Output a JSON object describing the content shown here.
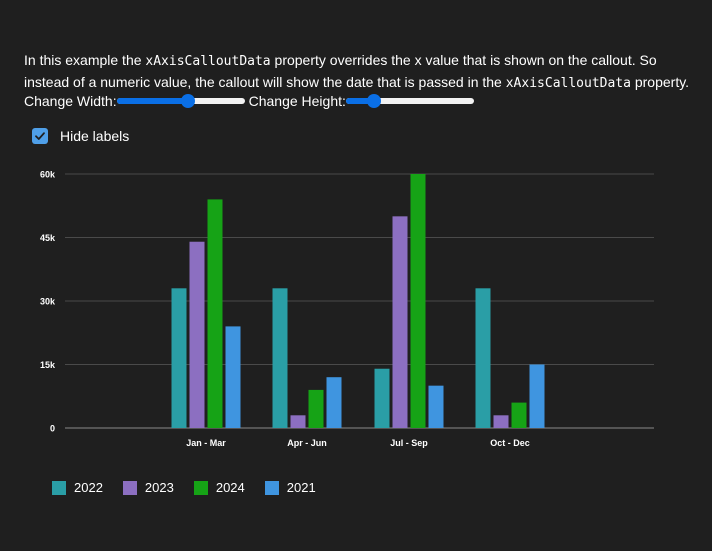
{
  "description": {
    "part1": "In this example the ",
    "code1": "xAxisCalloutData",
    "part2": " property overrides the x value that is shown on the callout. So instead of a numeric value, the callout will show the date that is passed in the ",
    "code2": "xAxisCalloutData",
    "part3": " property."
  },
  "controls": {
    "width_label": "Change Width:",
    "width_value": 0.56,
    "height_label": "Change Height:",
    "height_value": 0.22
  },
  "checkbox": {
    "label": "Hide labels",
    "checked": true,
    "icon": "checkmark-icon"
  },
  "colors": {
    "background": "#1f1f1f",
    "accent": "#0a6fe6"
  },
  "chart_data": {
    "type": "bar",
    "categories": [
      "Jan - Mar",
      "Apr - Jun",
      "Jul - Sep",
      "Oct - Dec"
    ],
    "yticks": [
      "0",
      "15k",
      "30k",
      "45k",
      "60k"
    ],
    "ylim": [
      0,
      60000
    ],
    "grid": true,
    "legend_position": "bottom-left",
    "series": [
      {
        "name": "2022",
        "color": "#2a9ea6",
        "values": [
          33000,
          33000,
          14000,
          33000
        ]
      },
      {
        "name": "2023",
        "color": "#8c6fc1",
        "values": [
          44000,
          3000,
          50000,
          3000
        ]
      },
      {
        "name": "2024",
        "color": "#16a316",
        "values": [
          54000,
          9000,
          60000,
          6000
        ]
      },
      {
        "name": "2021",
        "color": "#3f95e0",
        "values": [
          24000,
          12000,
          10000,
          15000
        ]
      }
    ]
  }
}
